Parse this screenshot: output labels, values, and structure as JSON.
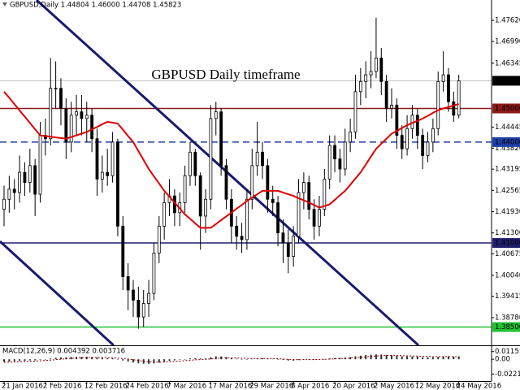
{
  "chart_data": [
    {
      "type": "candlestick",
      "header": "GBPUSD,Daily  1.44804 1.46000 1.44708 1.45823",
      "title": "GBPUSD Daily timeframe",
      "title_color": "#2b2b8c",
      "up_color": "#ffffff",
      "down_color": "#000000",
      "outline_color": "#000000",
      "open": [
        1.42,
        1.423,
        1.426,
        1.425,
        1.431,
        1.428,
        1.433,
        1.4245,
        1.442,
        1.441,
        1.456,
        1.456,
        1.45,
        1.44,
        1.448,
        1.449,
        1.447,
        1.448,
        1.441,
        1.429,
        1.431,
        1.43,
        1.44,
        1.415,
        1.4,
        1.396,
        1.393,
        1.388,
        1.392,
        1.395,
        1.407,
        1.415,
        1.422,
        1.424,
        1.419,
        1.422,
        1.43,
        1.437,
        1.43,
        1.418,
        1.423,
        1.447,
        1.449,
        1.433,
        1.423,
        1.415,
        1.412,
        1.411,
        1.423,
        1.433,
        1.437,
        1.433,
        1.423,
        1.422,
        1.413,
        1.41,
        1.406,
        1.412,
        1.425,
        1.428,
        1.42,
        1.415,
        1.42,
        1.429,
        1.439,
        1.435,
        1.432,
        1.44,
        1.443,
        1.455,
        1.458,
        1.46,
        1.461,
        1.465,
        1.458,
        1.45,
        1.451,
        1.442,
        1.438,
        1.444,
        1.448,
        1.442,
        1.436,
        1.44,
        1.444,
        1.458,
        1.46,
        1.452,
        1.44804
      ],
      "high": [
        1.427,
        1.43,
        1.429,
        1.436,
        1.434,
        1.438,
        1.435,
        1.446,
        1.447,
        1.465,
        1.464,
        1.459,
        1.453,
        1.452,
        1.454,
        1.454,
        1.452,
        1.45,
        1.444,
        1.436,
        1.438,
        1.443,
        1.441,
        1.418,
        1.404,
        1.399,
        1.397,
        1.396,
        1.399,
        1.41,
        1.418,
        1.425,
        1.429,
        1.426,
        1.425,
        1.433,
        1.44,
        1.438,
        1.431,
        1.426,
        1.451,
        1.452,
        1.45,
        1.435,
        1.426,
        1.418,
        1.416,
        1.426,
        1.438,
        1.446,
        1.44,
        1.435,
        1.427,
        1.424,
        1.417,
        1.414,
        1.415,
        1.429,
        1.431,
        1.43,
        1.423,
        1.424,
        1.432,
        1.442,
        1.442,
        1.438,
        1.444,
        1.447,
        1.46,
        1.462,
        1.464,
        1.467,
        1.477,
        1.468,
        1.46,
        1.456,
        1.453,
        1.445,
        1.448,
        1.451,
        1.45,
        1.444,
        1.443,
        1.447,
        1.461,
        1.467,
        1.462,
        1.455,
        1.46
      ],
      "low": [
        1.415,
        1.419,
        1.42,
        1.422,
        1.424,
        1.425,
        1.418,
        1.422,
        1.436,
        1.439,
        1.45,
        1.445,
        1.435,
        1.437,
        1.442,
        1.442,
        1.44,
        1.437,
        1.424,
        1.425,
        1.427,
        1.428,
        1.412,
        1.396,
        1.39,
        1.388,
        1.3845,
        1.385,
        1.388,
        1.393,
        1.404,
        1.411,
        1.418,
        1.415,
        1.415,
        1.419,
        1.427,
        1.427,
        1.408,
        1.413,
        1.42,
        1.442,
        1.43,
        1.42,
        1.41,
        1.408,
        1.407,
        1.408,
        1.42,
        1.43,
        1.429,
        1.419,
        1.418,
        1.409,
        1.404,
        1.401,
        1.403,
        1.41,
        1.42,
        1.417,
        1.411,
        1.412,
        1.418,
        1.426,
        1.431,
        1.428,
        1.43,
        1.437,
        1.441,
        1.451,
        1.453,
        1.456,
        1.459,
        1.454,
        1.446,
        1.447,
        1.438,
        1.435,
        1.436,
        1.441,
        1.438,
        1.432,
        1.434,
        1.437,
        1.442,
        1.455,
        1.449,
        1.446,
        1.44708
      ],
      "close": [
        1.423,
        1.426,
        1.425,
        1.431,
        1.428,
        1.433,
        1.4245,
        1.442,
        1.441,
        1.456,
        1.456,
        1.45,
        1.44,
        1.448,
        1.449,
        1.447,
        1.448,
        1.441,
        1.429,
        1.431,
        1.43,
        1.44,
        1.415,
        1.4,
        1.396,
        1.393,
        1.388,
        1.392,
        1.395,
        1.407,
        1.415,
        1.422,
        1.424,
        1.419,
        1.422,
        1.43,
        1.437,
        1.43,
        1.418,
        1.423,
        1.447,
        1.449,
        1.433,
        1.423,
        1.415,
        1.412,
        1.411,
        1.423,
        1.433,
        1.437,
        1.433,
        1.423,
        1.422,
        1.413,
        1.41,
        1.406,
        1.412,
        1.425,
        1.428,
        1.42,
        1.415,
        1.42,
        1.429,
        1.439,
        1.435,
        1.432,
        1.44,
        1.443,
        1.455,
        1.458,
        1.46,
        1.461,
        1.465,
        1.458,
        1.45,
        1.451,
        1.442,
        1.438,
        1.444,
        1.448,
        1.442,
        1.436,
        1.44,
        1.444,
        1.458,
        1.46,
        1.452,
        1.448,
        1.45823
      ],
      "moving_average": {
        "color": "#e00000",
        "values": [
          1.455,
          1.4532,
          1.4513,
          1.4494,
          1.4476,
          1.4457,
          1.4438,
          1.442,
          1.4418,
          1.4416,
          1.4414,
          1.4412,
          1.441,
          1.4415,
          1.442,
          1.4425,
          1.443,
          1.4438,
          1.4445,
          1.4453,
          1.446,
          1.4458,
          1.4455,
          1.4437,
          1.4418,
          1.44,
          1.4373,
          1.4347,
          1.432,
          1.4298,
          1.4277,
          1.4255,
          1.4238,
          1.422,
          1.4203,
          1.4185,
          1.4172,
          1.4158,
          1.4145,
          1.4145,
          1.4145,
          1.4156,
          1.4168,
          1.4179,
          1.419,
          1.4202,
          1.4213,
          1.4225,
          1.4235,
          1.4245,
          1.4255,
          1.4255,
          1.4255,
          1.4255,
          1.425,
          1.4245,
          1.424,
          1.4233,
          1.4227,
          1.422,
          1.4213,
          1.4205,
          1.421,
          1.4215,
          1.4228,
          1.4242,
          1.4255,
          1.4273,
          1.4292,
          1.431,
          1.4333,
          1.4357,
          1.438,
          1.4395,
          1.441,
          1.4425,
          1.4433,
          1.4442,
          1.445,
          1.4457,
          1.4463,
          1.447,
          1.4478,
          1.4487,
          1.4495,
          1.45,
          1.4504,
          1.4509,
          1.4513
        ]
      },
      "ylim": [
        1.37957,
        1.48225
      ],
      "yticks": [
        {
          "value": 1.4762,
          "label": "1.47620"
        },
        {
          "value": 1.4699,
          "label": "1.46990"
        },
        1.46345,
        1.44445,
        {
          "value": 1.4382,
          "label": "1.43820"
        },
        1.43195,
        1.42565,
        {
          "value": 1.4193,
          "label": "1.41930"
        },
        {
          "value": 1.413,
          "label": "1.41300"
        },
        1.40675,
        {
          "value": 1.4004,
          "label": "1.40040"
        },
        1.39415,
        {
          "value": 1.3878,
          "label": "1.38780"
        }
      ],
      "xticks": [
        {
          "value": 0,
          "label": "21 Jan 2016"
        },
        {
          "value": 8,
          "label": "2 Feb 2016"
        },
        {
          "value": 16,
          "label": "12 Feb 2016"
        },
        {
          "value": 24,
          "label": "24 Feb 2016"
        },
        {
          "value": 32,
          "label": "7 Mar 2016"
        },
        {
          "value": 40,
          "label": "17 Mar 2016"
        },
        {
          "value": 48,
          "label": "29 Mar 2016"
        },
        {
          "value": 56,
          "label": "8 Apr 2016"
        },
        {
          "value": 64,
          "label": "20 Apr 2016"
        },
        {
          "value": 72,
          "label": "2 May 2016"
        },
        {
          "value": 80,
          "label": "12 May 2016"
        },
        {
          "value": 88,
          "label": "24 May 2016"
        }
      ],
      "levels": [
        {
          "value": 1.45,
          "label": "1.45000",
          "color": "#8b1a1a",
          "dashed": false
        },
        {
          "value": 1.44,
          "label": "1.44000",
          "color": "#1e3fa8",
          "dashed": true
        },
        {
          "value": 1.41,
          "label": "1.41000",
          "color": "#1f1f6e",
          "dashed": false
        },
        {
          "value": 1.385,
          "label": "1.38500",
          "color": "#22c232",
          "dashed": false
        }
      ],
      "last_price": 1.45823,
      "trendlines": [
        {
          "color": "#1a1a6e",
          "points": [
            [
              6.29,
              1.48225
            ],
            [
              80.2,
              1.37957
            ]
          ]
        },
        {
          "color": "#1a1a6e",
          "points": [
            [
              -0.79,
              1.41049
            ],
            [
              21.2,
              1.37957
            ]
          ]
        }
      ]
    },
    {
      "type": "macd",
      "label": "MACD(12,26,9) 0.004392 0.003716",
      "ylim": [
        -0.03259,
        0.01964
      ],
      "yticks": [
        0.011515,
        {
          "value": 0,
          "label": "0.00"
        },
        -0.022152
      ],
      "histogram": {
        "color": "#333333",
        "values": [
          -0.004,
          -0.0035,
          -0.003,
          -0.0026,
          -0.0022,
          -0.0018,
          -0.0016,
          -0.0008,
          0,
          0.0012,
          0.0022,
          0.0028,
          0.003,
          0.0034,
          0.0036,
          0.0037,
          0.0038,
          0.0035,
          0.0026,
          0.002,
          0.0014,
          0.0014,
          0,
          -0.0018,
          -0.0034,
          -0.0048,
          -0.006,
          -0.0066,
          -0.0068,
          -0.0062,
          -0.005,
          -0.0036,
          -0.0024,
          -0.0016,
          -0.0008,
          0.0002,
          0.0012,
          0.0016,
          0.0012,
          0.0012,
          0.003,
          0.0044,
          0.0042,
          0.0032,
          0.002,
          0.0008,
          -0.0002,
          0,
          0.0006,
          0.0012,
          0.0014,
          0.001,
          0.0006,
          -0.0002,
          -0.001,
          -0.0018,
          -0.002,
          -0.0012,
          -0.0004,
          -0.0002,
          -0.0004,
          -0.0002,
          0.0004,
          0.0014,
          0.0018,
          0.002,
          0.0026,
          0.0032,
          0.0044,
          0.0054,
          0.0062,
          0.0068,
          0.0072,
          0.007,
          0.0064,
          0.006,
          0.0052,
          0.0044,
          0.0042,
          0.0042,
          0.0038,
          0.003,
          0.0028,
          0.0028,
          0.0036,
          0.0042,
          0.0042,
          0.004,
          0.004392
        ]
      },
      "signal": {
        "color": "#8b0000",
        "values": [
          -0.0045,
          -0.0043,
          -0.004,
          -0.0037,
          -0.0034,
          -0.0031,
          -0.0028,
          -0.0024,
          -0.0019,
          -0.0013,
          -0.0006,
          0.0001,
          0.0007,
          0.0013,
          0.0018,
          0.0022,
          0.0025,
          0.0027,
          0.0027,
          0.0026,
          0.0024,
          0.0022,
          0.0018,
          0.0011,
          0.0002,
          -0.0008,
          -0.0018,
          -0.0028,
          -0.0036,
          -0.0041,
          -0.0043,
          -0.0042,
          -0.0038,
          -0.0033,
          -0.0028,
          -0.0022,
          -0.0015,
          -0.0009,
          -0.0005,
          -0.0001,
          0.0005,
          0.0012,
          0.0018,
          0.0021,
          0.0021,
          0.0019,
          0.0015,
          0.0012,
          0.0011,
          0.0011,
          0.0012,
          0.0012,
          0.0011,
          0.0008,
          0.0004,
          -0.0001,
          -0.0005,
          -0.0007,
          -0.0006,
          -0.0005,
          -0.0005,
          -0.0004,
          -0.0002,
          0.0002,
          0.0006,
          0.0009,
          0.0013,
          0.0017,
          0.0023,
          0.0029,
          0.0036,
          0.0042,
          0.0048,
          0.0053,
          0.0055,
          0.0056,
          0.0055,
          0.0053,
          0.0051,
          0.0049,
          0.0047,
          0.0044,
          0.0041,
          0.0039,
          0.0038,
          0.0039,
          0.004,
          0.0038,
          0.003716
        ]
      }
    }
  ]
}
